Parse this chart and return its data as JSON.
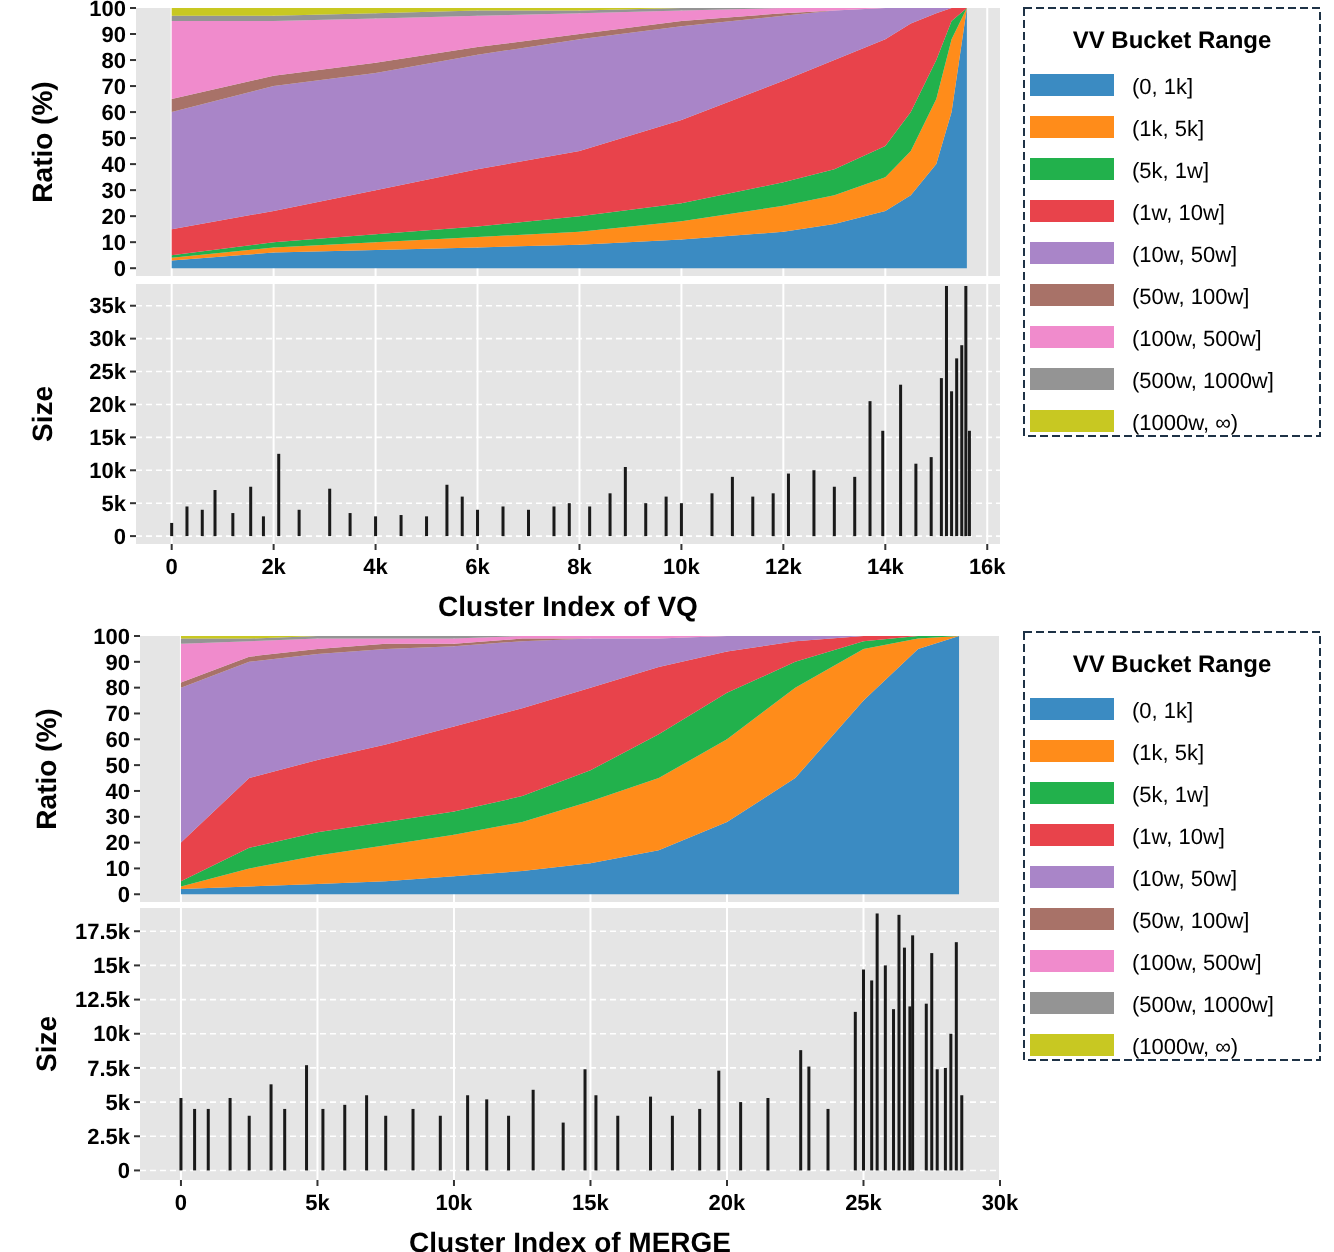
{
  "chart_data": [
    {
      "type": "area",
      "stacked": true,
      "ylabel": "Ratio (%)",
      "legend_title": "VV Bucket Range",
      "legend": "right",
      "grid": "x",
      "tick_labels": "y",
      "x": [
        0,
        2000,
        4000,
        6000,
        8000,
        10000,
        12000,
        13000,
        14000,
        14500,
        15000,
        15300,
        15600
      ],
      "xlim": [
        -700,
        16250
      ],
      "xticks": [
        {
          "value": 0,
          "label": null
        },
        {
          "value": 2000,
          "label": null
        },
        {
          "value": 4000,
          "label": null
        },
        {
          "value": 6000,
          "label": null
        },
        {
          "value": 8000,
          "label": null
        },
        {
          "value": 10000,
          "label": null
        },
        {
          "value": 12000,
          "label": null
        },
        {
          "value": 14000,
          "label": null
        },
        {
          "value": 16000,
          "label": null
        }
      ],
      "ylim": [
        -3,
        100
      ],
      "yticks": [
        0,
        10,
        20,
        30,
        40,
        50,
        60,
        70,
        80,
        90,
        100
      ],
      "series": [
        {
          "name": "(0, 1k]",
          "color": "#3b8bc2",
          "values": [
            3,
            6,
            7,
            8,
            9,
            11,
            14,
            17,
            22,
            28,
            40,
            60,
            100
          ]
        },
        {
          "name": "(1k, 5k]",
          "color": "#ff8c1a",
          "values": [
            1,
            2,
            3,
            4,
            5,
            7,
            10,
            11,
            13,
            17,
            25,
            28,
            0
          ]
        },
        {
          "name": "(5k, 1w]",
          "color": "#22b14c",
          "values": [
            1,
            2,
            3,
            4,
            6,
            7,
            9,
            10,
            12,
            15,
            15,
            7,
            0
          ]
        },
        {
          "name": "(1w, 10w]",
          "color": "#e8434b",
          "values": [
            10,
            12,
            17,
            22,
            25,
            32,
            39,
            42,
            41,
            34,
            18,
            5,
            0
          ]
        },
        {
          "name": "(10w, 50w]",
          "color": "#a985c8",
          "values": [
            45,
            48,
            45,
            44,
            43,
            36,
            25,
            19,
            12,
            6,
            2,
            0,
            0
          ]
        },
        {
          "name": "(50w, 100w]",
          "color": "#a87268",
          "values": [
            5,
            4,
            4,
            3,
            2,
            2,
            1,
            0,
            0,
            0,
            0,
            0,
            0
          ]
        },
        {
          "name": "(100w, 500w]",
          "color": "#f08bcc",
          "values": [
            30,
            21,
            17,
            12,
            8,
            4,
            2,
            1,
            0,
            0,
            0,
            0,
            0
          ]
        },
        {
          "name": "(500w, 1000w]",
          "color": "#949494",
          "values": [
            2,
            2,
            2,
            2,
            1,
            1,
            0,
            0,
            0,
            0,
            0,
            0,
            0
          ]
        },
        {
          "name": "(1000w, ∞)",
          "color": "#c8c822",
          "values": [
            3,
            3,
            2,
            1,
            1,
            0,
            0,
            0,
            0,
            0,
            0,
            0,
            0
          ]
        }
      ]
    },
    {
      "type": "bar",
      "xlabel": "Cluster Index of VQ",
      "ylabel": "Size",
      "grid": true,
      "x": [
        0,
        300,
        600,
        850,
        1200,
        1550,
        1800,
        2100,
        2500,
        3100,
        3500,
        4000,
        4500,
        5000,
        5400,
        5700,
        6000,
        6500,
        7000,
        7500,
        7800,
        8200,
        8600,
        8900,
        9300,
        9700,
        10000,
        10600,
        11000,
        11400,
        11800,
        12100,
        12600,
        13000,
        13400,
        13700,
        13950,
        14300,
        14600,
        14900,
        15100,
        15200,
        15300,
        15400,
        15500,
        15580,
        15650
      ],
      "xlim": [
        -700,
        16250
      ],
      "xticks": [
        {
          "value": 0,
          "label": "0"
        },
        {
          "value": 2000,
          "label": "2k"
        },
        {
          "value": 4000,
          "label": "4k"
        },
        {
          "value": 6000,
          "label": "6k"
        },
        {
          "value": 8000,
          "label": "8k"
        },
        {
          "value": 10000,
          "label": "10k"
        },
        {
          "value": 12000,
          "label": "12k"
        },
        {
          "value": 14000,
          "label": "14k"
        },
        {
          "value": 16000,
          "label": "16k"
        }
      ],
      "ylim": [
        -1200,
        38300
      ],
      "yticks": [
        {
          "value": 0,
          "label": "0"
        },
        {
          "value": 5000,
          "label": "5k"
        },
        {
          "value": 10000,
          "label": "10k"
        },
        {
          "value": 15000,
          "label": "15k"
        },
        {
          "value": 20000,
          "label": "20k"
        },
        {
          "value": 25000,
          "label": "25k"
        },
        {
          "value": 30000,
          "label": "30k"
        },
        {
          "value": 35000,
          "label": "35k"
        }
      ],
      "series": [
        {
          "color": "#1a1a1a",
          "values": [
            2000,
            4500,
            4000,
            7000,
            3500,
            7500,
            3000,
            12500,
            4000,
            7200,
            3500,
            3000,
            3200,
            3000,
            7800,
            6000,
            4000,
            4500,
            4000,
            4500,
            5000,
            4500,
            6500,
            10500,
            5000,
            6000,
            5000,
            6500,
            9000,
            6000,
            6500,
            9500,
            10000,
            7500,
            9000,
            20500,
            16000,
            23000,
            11000,
            12000,
            24000,
            38000,
            22000,
            27000,
            29000,
            38000,
            16000
          ]
        }
      ]
    },
    {
      "type": "area",
      "stacked": true,
      "ylabel": "Ratio (%)",
      "legend_title": "VV Bucket Range",
      "legend": "right",
      "grid": "x",
      "tick_labels": "y",
      "x": [
        0,
        2500,
        5000,
        7500,
        10000,
        12500,
        15000,
        17500,
        20000,
        22500,
        25000,
        27000,
        28500
      ],
      "xlim": [
        -1500,
        30000
      ],
      "xticks": [
        {
          "value": 0,
          "label": null
        },
        {
          "value": 5000,
          "label": null
        },
        {
          "value": 10000,
          "label": null
        },
        {
          "value": 15000,
          "label": null
        },
        {
          "value": 20000,
          "label": null
        },
        {
          "value": 25000,
          "label": null
        },
        {
          "value": 30000,
          "label": null
        }
      ],
      "ylim": [
        -3,
        100
      ],
      "yticks": [
        0,
        10,
        20,
        30,
        40,
        50,
        60,
        70,
        80,
        90,
        100
      ],
      "series": [
        {
          "name": "(0, 1k]",
          "color": "#3b8bc2",
          "values": [
            2,
            3,
            4,
            5,
            7,
            9,
            12,
            17,
            28,
            45,
            75,
            95,
            100
          ]
        },
        {
          "name": "(1k, 5k]",
          "color": "#ff8c1a",
          "values": [
            1,
            7,
            11,
            14,
            16,
            19,
            24,
            28,
            32,
            35,
            20,
            4,
            0
          ]
        },
        {
          "name": "(5k, 1w]",
          "color": "#22b14c",
          "values": [
            2,
            8,
            9,
            9,
            9,
            10,
            12,
            17,
            18,
            10,
            3,
            1,
            0
          ]
        },
        {
          "name": "(1w, 10w]",
          "color": "#e8434b",
          "values": [
            15,
            27,
            28,
            30,
            33,
            34,
            32,
            26,
            16,
            8,
            2,
            0,
            0
          ]
        },
        {
          "name": "(10w, 50w]",
          "color": "#a985c8",
          "values": [
            60,
            45,
            41,
            37,
            31,
            26,
            19,
            11,
            6,
            2,
            0,
            0,
            0
          ]
        },
        {
          "name": "(50w, 100w]",
          "color": "#a87268",
          "values": [
            2,
            2,
            2,
            2,
            1,
            1,
            0,
            0,
            0,
            0,
            0,
            0,
            0
          ]
        },
        {
          "name": "(100w, 500w]",
          "color": "#f08bcc",
          "values": [
            15,
            6,
            4,
            2,
            2,
            1,
            1,
            1,
            0,
            0,
            0,
            0,
            0
          ]
        },
        {
          "name": "(500w, 1000w]",
          "color": "#949494",
          "values": [
            2,
            1,
            1,
            1,
            1,
            0,
            0,
            0,
            0,
            0,
            0,
            0,
            0
          ]
        },
        {
          "name": "(1000w, ∞)",
          "color": "#c8c822",
          "values": [
            1,
            1,
            0,
            0,
            0,
            0,
            0,
            0,
            0,
            0,
            0,
            0,
            0
          ]
        }
      ]
    },
    {
      "type": "bar",
      "xlabel": "Cluster Index of MERGE",
      "ylabel": "Size",
      "grid": true,
      "x": [
        0,
        500,
        1000,
        1800,
        2500,
        3300,
        3800,
        4600,
        5200,
        6000,
        6800,
        7500,
        8500,
        9500,
        10500,
        11200,
        12000,
        12900,
        14000,
        14800,
        15200,
        16000,
        17200,
        18000,
        19000,
        19700,
        20500,
        21500,
        22700,
        23000,
        23700,
        24700,
        25000,
        25300,
        25500,
        25800,
        26100,
        26300,
        26500,
        26700,
        26800,
        27300,
        27500,
        27700,
        28000,
        28200,
        28400,
        28600
      ],
      "xlim": [
        -1500,
        30000
      ],
      "xticks": [
        {
          "value": 0,
          "label": "0"
        },
        {
          "value": 5000,
          "label": "5k"
        },
        {
          "value": 10000,
          "label": "10k"
        },
        {
          "value": 15000,
          "label": "15k"
        },
        {
          "value": 20000,
          "label": "20k"
        },
        {
          "value": 25000,
          "label": "25k"
        },
        {
          "value": 30000,
          "label": "30k"
        }
      ],
      "ylim": [
        -700,
        19200
      ],
      "yticks": [
        {
          "value": 0,
          "label": "0"
        },
        {
          "value": 2500,
          "label": "2.5k"
        },
        {
          "value": 5000,
          "label": "5k"
        },
        {
          "value": 7500,
          "label": "7.5k"
        },
        {
          "value": 10000,
          "label": "10k"
        },
        {
          "value": 12500,
          "label": "12.5k"
        },
        {
          "value": 15000,
          "label": "15k"
        },
        {
          "value": 17500,
          "label": "17.5k"
        }
      ],
      "series": [
        {
          "color": "#1a1a1a",
          "values": [
            5300,
            4500,
            4500,
            5300,
            4000,
            6300,
            4500,
            7700,
            4500,
            4800,
            5500,
            4000,
            4500,
            4000,
            5500,
            5200,
            4000,
            5900,
            3500,
            7400,
            5500,
            4000,
            5400,
            4000,
            4500,
            7300,
            5000,
            5300,
            8800,
            7600,
            4500,
            11600,
            14700,
            13900,
            18800,
            15000,
            11800,
            18700,
            16300,
            12000,
            17200,
            12200,
            15900,
            7400,
            7500,
            10000,
            16700,
            5500
          ]
        }
      ]
    }
  ]
}
